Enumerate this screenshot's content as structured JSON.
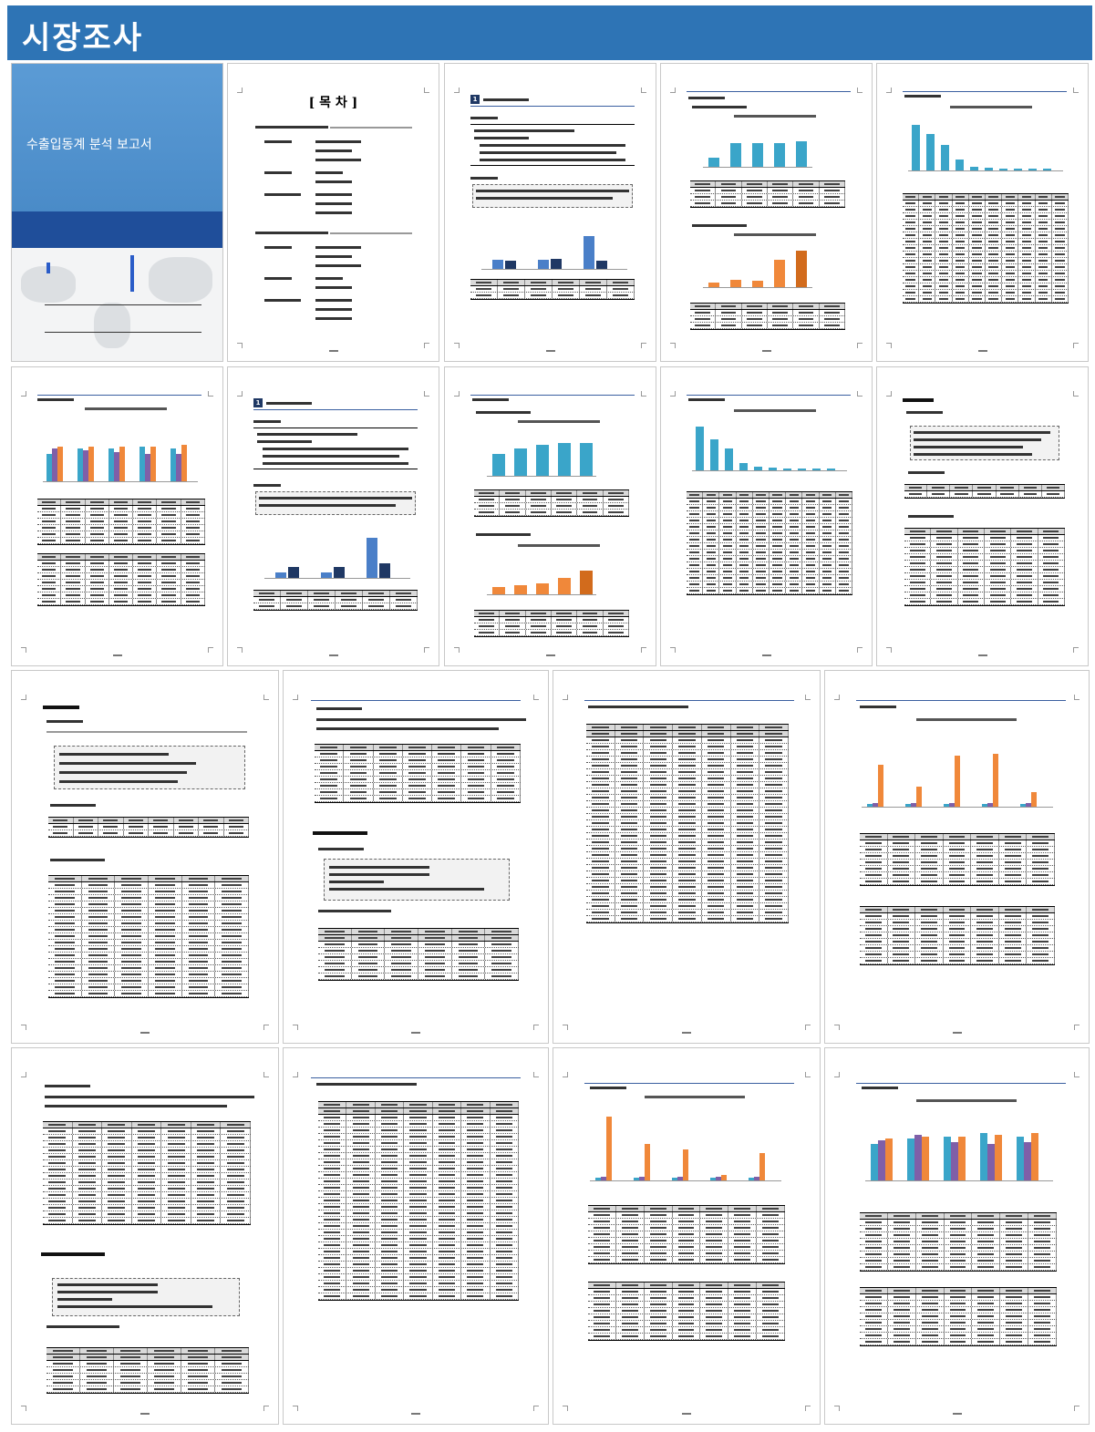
{
  "banner": {
    "title": "시장조사"
  },
  "cover": {
    "title": "수출입동계 분석 보고서"
  },
  "toc": {
    "title": "[ 목 차 ]"
  },
  "sections": {
    "section3_heading": "3. 타가 및 비교정보",
    "chapter2_heading": "2. 경쟁현황",
    "chapter1_heading": "1. 수출현황",
    "section_badge_1": "1",
    "section_badge_2": "1"
  },
  "colors": {
    "banner": "#2e74b5",
    "bar_blue": "#4a90c8",
    "bar_teal": "#3aa5c9",
    "bar_orange": "#f0883a",
    "bar_navy": "#1f3864",
    "bar_purple": "#7f5fa8"
  }
}
